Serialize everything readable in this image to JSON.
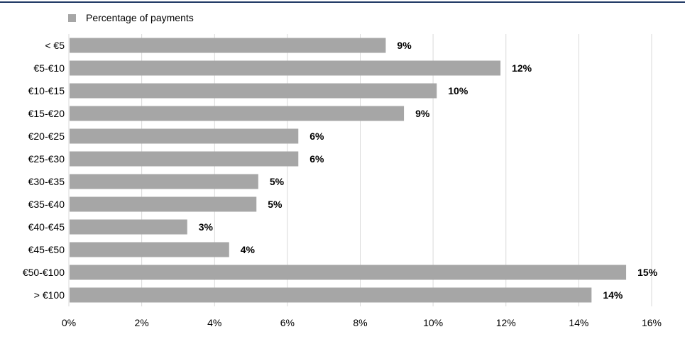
{
  "chart_data": {
    "type": "bar",
    "orientation": "horizontal",
    "categories": [
      "< €5",
      "€5-€10",
      "€10-€15",
      "€15-€20",
      "€20-€25",
      "€25-€30",
      "€30-€35",
      "€35-€40",
      "€40-€45",
      "€45-€50",
      "€50-€100",
      "> €100"
    ],
    "series": [
      {
        "name": "Percentage of payments",
        "values": [
          8.7,
          11.85,
          10.1,
          9.2,
          6.3,
          6.3,
          5.2,
          5.15,
          3.25,
          4.4,
          15.3,
          14.35
        ],
        "labels": [
          "9%",
          "12%",
          "10%",
          "9%",
          "6%",
          "6%",
          "5%",
          "5%",
          "3%",
          "4%",
          "15%",
          "14%"
        ]
      }
    ],
    "xlim": [
      0,
      16
    ],
    "x_ticks": [
      0,
      2,
      4,
      6,
      8,
      10,
      12,
      14,
      16
    ],
    "x_tick_labels": [
      "0%",
      "2%",
      "4%",
      "6%",
      "8%",
      "10%",
      "12%",
      "14%",
      "16%"
    ],
    "xlabel": "",
    "ylabel": "",
    "grid": true,
    "legend_position": "top-left",
    "colors": {
      "bar": "#a6a6a6",
      "grid": "#d9d9d9",
      "rule": "#1f3864"
    }
  }
}
